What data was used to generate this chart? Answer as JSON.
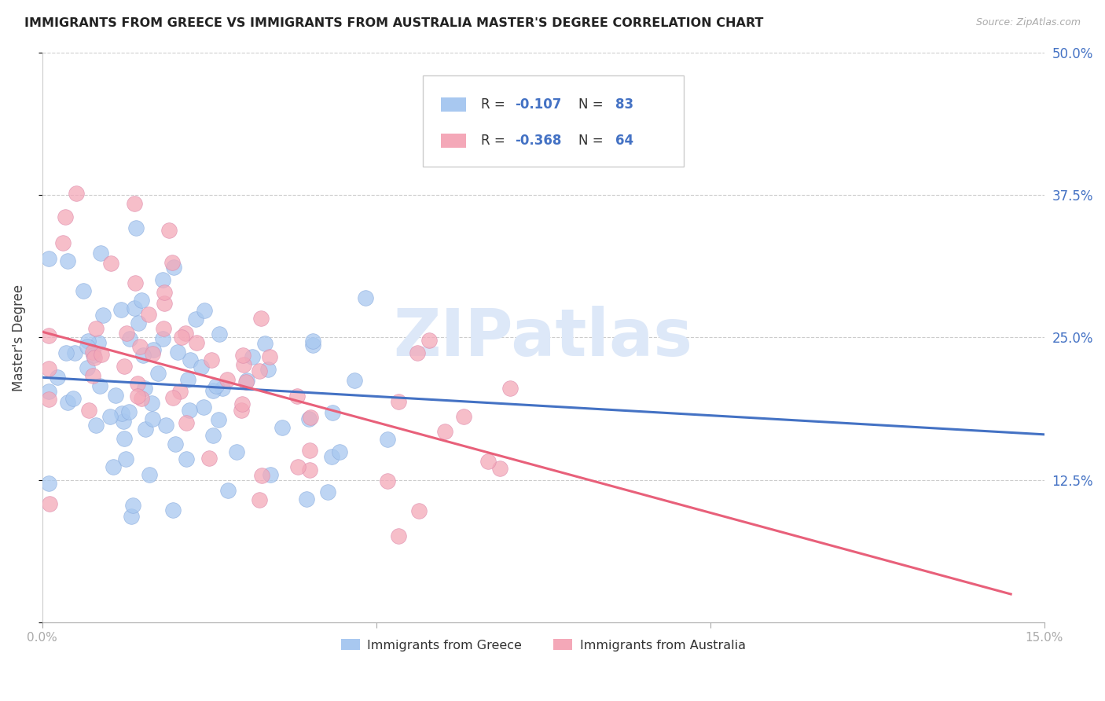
{
  "title": "IMMIGRANTS FROM GREECE VS IMMIGRANTS FROM AUSTRALIA MASTER'S DEGREE CORRELATION CHART",
  "source": "Source: ZipAtlas.com",
  "ylabel": "Master's Degree",
  "x_min": 0.0,
  "x_max": 0.15,
  "y_min": 0.0,
  "y_max": 0.5,
  "color_greece": "#A8C8F0",
  "color_australia": "#F4A8B8",
  "color_blue": "#4472C4",
  "color_pink": "#E8607A",
  "color_tick_label": "#4472C4",
  "color_gridline": "#cccccc",
  "watermark_color": "#dde8f8",
  "greece_line_x0": 0.0,
  "greece_line_x1": 0.15,
  "greece_line_y0": 0.215,
  "greece_line_y1": 0.165,
  "australia_line_x0": 0.0,
  "australia_line_x1": 0.145,
  "australia_line_y0": 0.255,
  "australia_line_y1": 0.025
}
